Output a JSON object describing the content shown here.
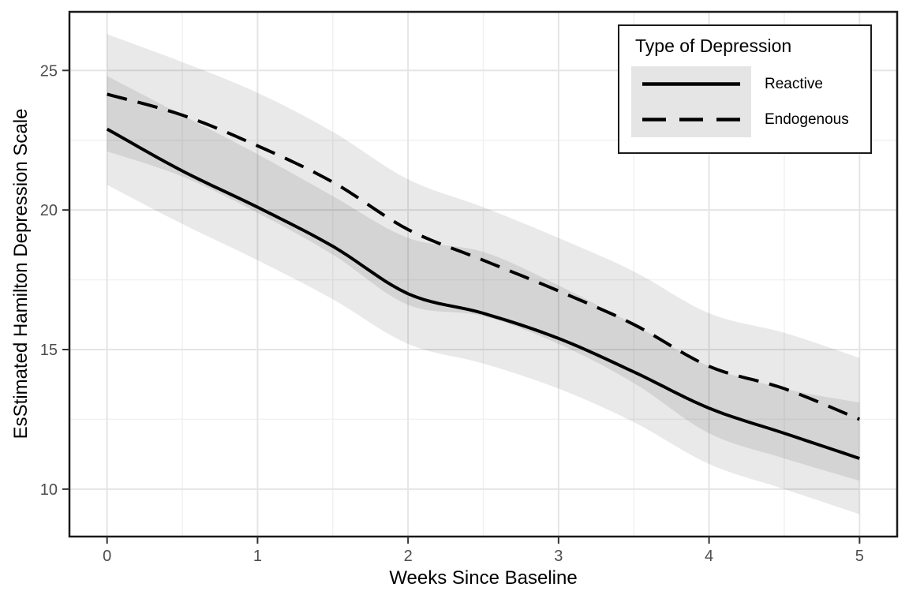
{
  "chart_data": {
    "type": "line",
    "title": "",
    "xlabel": "Weeks Since Baseline",
    "ylabel": "EsStimated Hamilton Depression Scale",
    "xlim": [
      -0.25,
      5.25
    ],
    "ylim": [
      8.3,
      27.1
    ],
    "x_ticks": [
      0,
      1,
      2,
      3,
      4,
      5
    ],
    "y_ticks": [
      10,
      15,
      20,
      25
    ],
    "grid": "major and minor horizontal+vertical, light gray, on white panel with dark border",
    "legend": {
      "title": "Type of Depression",
      "position": "top-right inside panel",
      "entries": [
        {
          "label": "Reactive",
          "linestyle": "solid"
        },
        {
          "label": "Endogenous",
          "linestyle": "dashed"
        }
      ]
    },
    "x": [
      0,
      0.5,
      1,
      1.5,
      2,
      2.5,
      3,
      3.5,
      4,
      4.5,
      5
    ],
    "series": [
      {
        "name": "Reactive",
        "linestyle": "solid",
        "color": "#000000",
        "values": [
          22.9,
          21.4,
          20.1,
          18.7,
          17.0,
          16.3,
          15.4,
          14.2,
          12.9,
          12.0,
          11.1
        ],
        "ci_lower": [
          20.9,
          19.5,
          18.2,
          16.8,
          15.2,
          14.5,
          13.6,
          12.4,
          10.9,
          10.0,
          9.1
        ],
        "ci_upper": [
          24.8,
          23.4,
          22.0,
          20.5,
          19.0,
          18.5,
          17.3,
          15.9,
          14.4,
          13.6,
          13.1
        ]
      },
      {
        "name": "Endogenous",
        "linestyle": "dashed",
        "color": "#000000",
        "values": [
          24.15,
          23.4,
          22.3,
          21.0,
          19.3,
          18.2,
          17.1,
          15.9,
          14.4,
          13.6,
          12.5
        ],
        "ci_lower": [
          22.1,
          21.2,
          19.9,
          18.4,
          16.6,
          16.2,
          15.2,
          13.8,
          12.0,
          11.1,
          10.3
        ],
        "ci_upper": [
          26.3,
          25.3,
          24.2,
          22.8,
          21.1,
          20.1,
          19.0,
          17.8,
          16.3,
          15.6,
          14.7
        ]
      }
    ],
    "colors": {
      "line": "#000000",
      "confidence_band_fill": "#000000",
      "confidence_band_opacity": 0.085,
      "grid_major": "#E5E5E5",
      "grid_minor": "#F1F1F1",
      "panel_border": "#1A1A1A",
      "tick_mark": "#333333",
      "tick_label": "#4D4D4D",
      "axis_title": "#000000",
      "legend_key_bg": "#E5E5E5",
      "background": "#FFFFFF"
    }
  }
}
